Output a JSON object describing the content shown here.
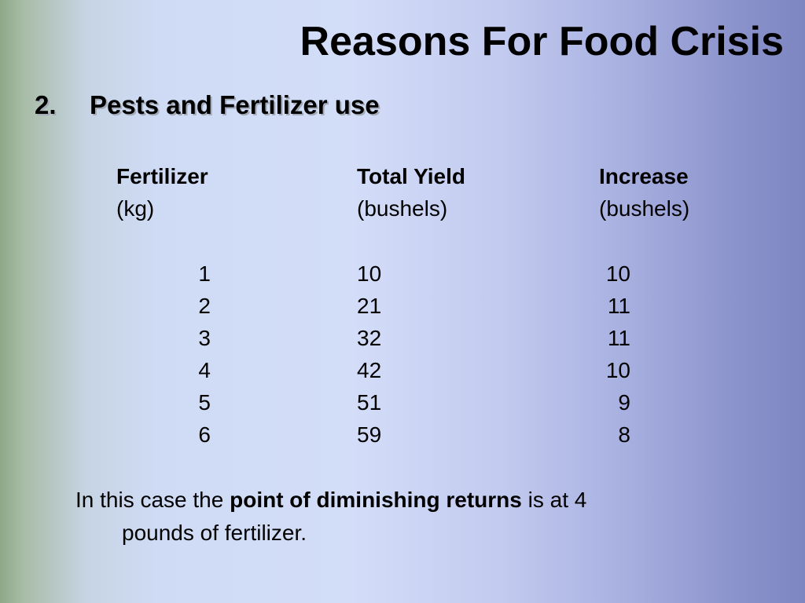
{
  "slide": {
    "title": "Reasons For Food Crisis",
    "heading_number": "2.",
    "heading_text": "Pests and Fertilizer use"
  },
  "table": {
    "columns": [
      {
        "header": "Fertilizer",
        "unit": "(kg)"
      },
      {
        "header": "Total Yield",
        "unit": "(bushels)"
      },
      {
        "header": "Increase",
        "unit": "(bushels)"
      }
    ],
    "rows": [
      {
        "fertilizer": "1",
        "total_yield": "10",
        "increase": "10"
      },
      {
        "fertilizer": "2",
        "total_yield": "21",
        "increase": "11"
      },
      {
        "fertilizer": "3",
        "total_yield": "32",
        "increase": "11"
      },
      {
        "fertilizer": "4",
        "total_yield": "42",
        "increase": "10"
      },
      {
        "fertilizer": "5",
        "total_yield": "51",
        "increase": "9"
      },
      {
        "fertilizer": "6",
        "total_yield": "59",
        "increase": "8"
      }
    ]
  },
  "conclusion": {
    "before": "In this case the ",
    "emphasis": "point of diminishing returns",
    "after": " is at 4",
    "line2": "pounds of fertilizer."
  }
}
